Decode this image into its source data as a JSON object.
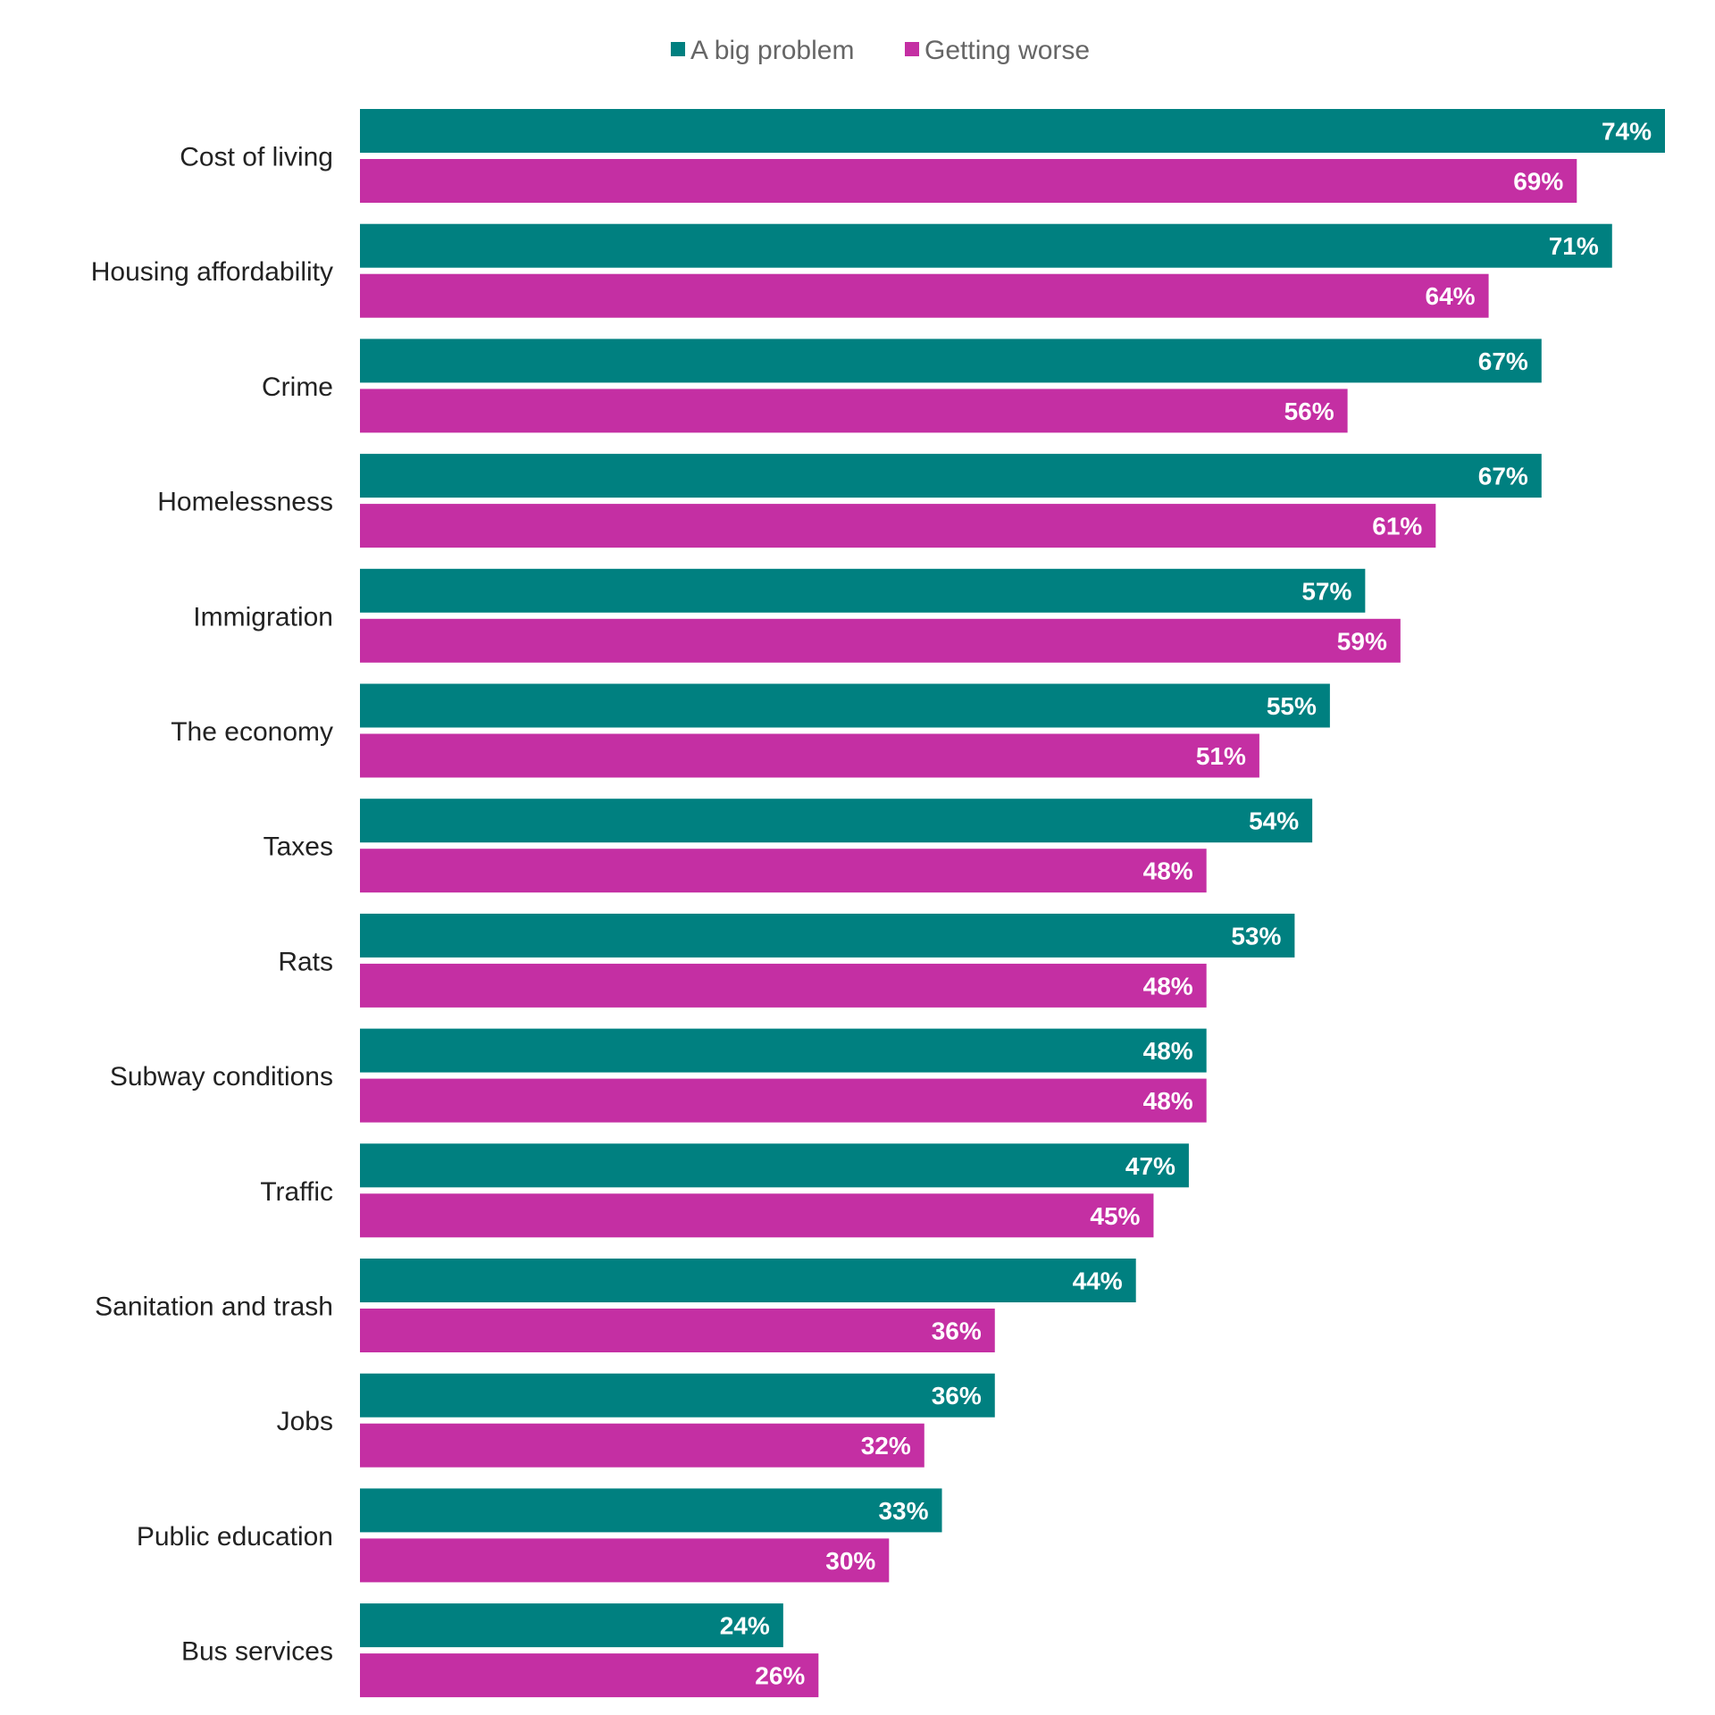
{
  "chart_data": {
    "type": "bar",
    "orientation": "horizontal",
    "legend_position": "top",
    "grid": false,
    "xlim": [
      0,
      74
    ],
    "categories": [
      "Cost of living",
      "Housing affordability",
      "Crime",
      "Homelessness",
      "Immigration",
      "The economy",
      "Taxes",
      "Rats",
      "Subway conditions",
      "Traffic",
      "Sanitation and trash",
      "Jobs",
      "Public education",
      "Bus services"
    ],
    "series": [
      {
        "name": "A big problem",
        "color": "#008080",
        "values": [
          74,
          71,
          67,
          67,
          57,
          55,
          54,
          53,
          48,
          47,
          44,
          36,
          33,
          24
        ],
        "labels": [
          "74%",
          "71%",
          "67%",
          "67%",
          "57%",
          "55%",
          "54%",
          "53%",
          "48%",
          "47%",
          "44%",
          "36%",
          "33%",
          "24%"
        ]
      },
      {
        "name": "Getting worse",
        "color": "#c42fa3",
        "values": [
          69,
          64,
          56,
          61,
          59,
          51,
          48,
          48,
          48,
          45,
          36,
          32,
          30,
          26
        ],
        "labels": [
          "69%",
          "64%",
          "56%",
          "61%",
          "59%",
          "51%",
          "48%",
          "48%",
          "48%",
          "45%",
          "36%",
          "32%",
          "30%",
          "26%"
        ]
      }
    ]
  }
}
